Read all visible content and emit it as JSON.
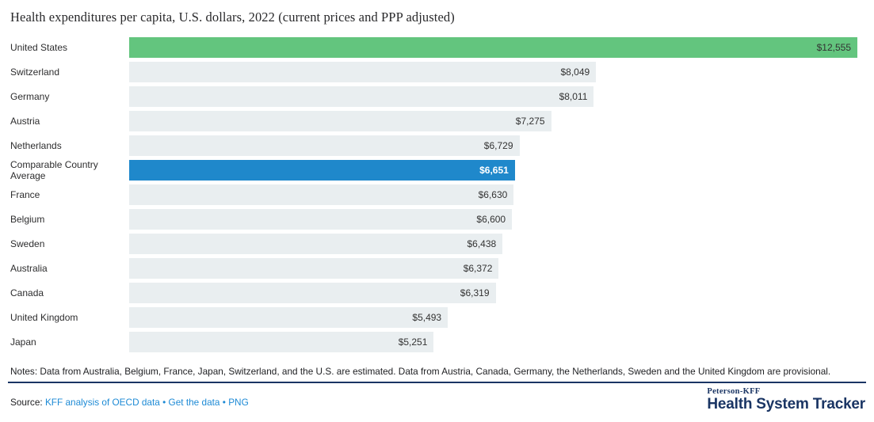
{
  "title": "Health expenditures per capita, U.S. dollars, 2022 (current prices and PPP adjusted)",
  "chart_data": {
    "type": "bar",
    "orientation": "horizontal",
    "title": "Health expenditures per capita, U.S. dollars, 2022 (current prices and PPP adjusted)",
    "xlim": [
      0,
      12555
    ],
    "grid": false,
    "legend": false,
    "rows": [
      {
        "label": "United States",
        "value": 12555,
        "display": "$12,555",
        "style": "us"
      },
      {
        "label": "Switzerland",
        "value": 8049,
        "display": "$8,049",
        "style": "default"
      },
      {
        "label": "Germany",
        "value": 8011,
        "display": "$8,011",
        "style": "default"
      },
      {
        "label": "Austria",
        "value": 7275,
        "display": "$7,275",
        "style": "default"
      },
      {
        "label": "Netherlands",
        "value": 6729,
        "display": "$6,729",
        "style": "default"
      },
      {
        "label": "Comparable Country Average",
        "value": 6651,
        "display": "$6,651",
        "style": "average"
      },
      {
        "label": "France",
        "value": 6630,
        "display": "$6,630",
        "style": "default"
      },
      {
        "label": "Belgium",
        "value": 6600,
        "display": "$6,600",
        "style": "default"
      },
      {
        "label": "Sweden",
        "value": 6438,
        "display": "$6,438",
        "style": "default"
      },
      {
        "label": "Australia",
        "value": 6372,
        "display": "$6,372",
        "style": "default"
      },
      {
        "label": "Canada",
        "value": 6319,
        "display": "$6,319",
        "style": "default"
      },
      {
        "label": "United Kingdom",
        "value": 5493,
        "display": "$5,493",
        "style": "default"
      },
      {
        "label": "Japan",
        "value": 5251,
        "display": "$5,251",
        "style": "default"
      }
    ],
    "bar_colors": {
      "us": "#63c57e",
      "average": "#1f88cb",
      "default": "#e9eef0"
    }
  },
  "notes": "Notes: Data from Australia, Belgium, France, Japan, Switzerland, and the U.S. are estimated. Data from Austria, Canada, Germany, the Netherlands, Sweden and the United Kingdom are provisional.",
  "source": {
    "label": "Source:",
    "links": [
      "KFF analysis of OECD data",
      "Get the data",
      "PNG"
    ],
    "separator": "•"
  },
  "branding": {
    "top": "Peterson-KFF",
    "bottom": "Health System Tracker"
  },
  "colors": {
    "navy": "#1a3564",
    "link_blue": "#1d8ad5"
  }
}
